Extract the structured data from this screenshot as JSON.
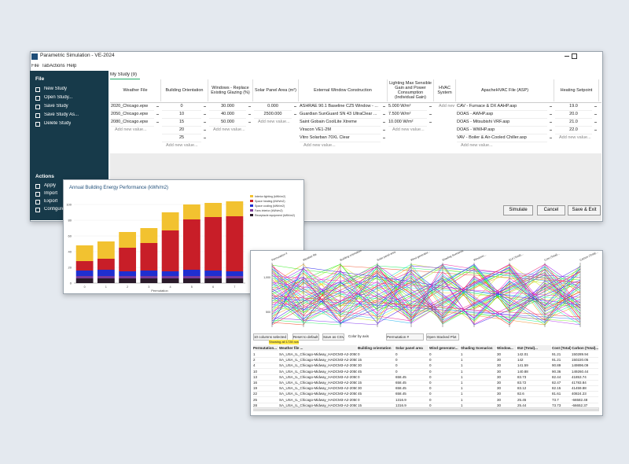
{
  "window": {
    "title": "Parametric Simulation - VE-2024",
    "menu": [
      "File",
      "Tab",
      "Actions",
      "Help"
    ]
  },
  "sidebar": {
    "file_heading": "File",
    "file_items": [
      "New Study",
      "Open Study...",
      "Save Study",
      "Save Study As...",
      "Delete Study"
    ],
    "actions_heading": "Actions",
    "action_items": [
      "Apply",
      "Import",
      "Export",
      "Configure"
    ]
  },
  "tab": "My Study (9)",
  "table": {
    "add_label": "Add new value...",
    "columns": [
      {
        "header": "Weather File",
        "values": [
          "2020_Chicago.epw",
          "2050_Chicago.epw",
          "2080_Chicago.epw"
        ]
      },
      {
        "header": "Building Orientation",
        "values": [
          "0",
          "10",
          "15",
          "20",
          "25"
        ]
      },
      {
        "header": "Windows - Replace Existing Glazing (%)",
        "values": [
          "30.000",
          "40.000",
          "50.000"
        ]
      },
      {
        "header": "Solar Panel Area (m²)",
        "values": [
          "0.000",
          "2500.000"
        ]
      },
      {
        "header": "External Window Construction",
        "values": [
          "ASHRAE 90.1 Baseline CZ5 Window - ...",
          "Guardian SunGuard SN 43 UltraClear ...",
          "Saint Gobain CoolLite Xtreme",
          "Viracon VE1-2M",
          "Vitro Solarban 70XL Clear"
        ]
      },
      {
        "header": "Lighting Max Sensible Gain and Power Consumption (Individual Gain)",
        "values": [
          "5.000 W/m²",
          "7.500 W/m²",
          "10.000 W/m²"
        ]
      },
      {
        "header": "HVAC System",
        "values": []
      },
      {
        "header": "ApacheHVAC File (ASP)",
        "values": [
          "CAV - Furnace & DX AAHP.asp",
          "DOAS - AWHP.asp",
          "DOAS - Mitsubishi VRF.asp",
          "DOAS - WWHP.asp",
          "VAV - Boiler & Air-Cooled Chiller.asp"
        ]
      },
      {
        "header": "Heating Setpoint",
        "values": [
          "19.0",
          "20.0",
          "21.0",
          "22.0"
        ]
      }
    ]
  },
  "buttons": [
    "Simulate",
    "Cancel",
    "Save & Exit"
  ],
  "energy_chart": {
    "type": "bar",
    "stacked": true,
    "title": "Annual Building Energy Performance (kWh/m2)",
    "x_label": "Permutation",
    "categories": [
      "0",
      "1",
      "2",
      "3",
      "4",
      "5",
      "6",
      "7"
    ],
    "series": [
      {
        "name": "Receptacle equipment (kWh/m2)",
        "color": "#2a1a2a",
        "values": [
          6,
          6,
          6,
          6,
          6,
          6,
          6,
          6
        ]
      },
      {
        "name": "Fans interior (kWh/m2)",
        "color": "#7a3a9a",
        "values": [
          3,
          3,
          3,
          3,
          3,
          3,
          3,
          3
        ]
      },
      {
        "name": "Space cooling (kWh/m2)",
        "color": "#1f2fd0",
        "values": [
          7,
          8,
          6,
          7,
          6,
          8,
          7,
          6
        ]
      },
      {
        "name": "Space heating (kWh/m2)",
        "color": "#c81e28",
        "values": [
          12,
          14,
          30,
          35,
          52,
          64,
          68,
          70
        ]
      },
      {
        "name": "Interior lighting (kWh/m2)",
        "color": "#f2c230",
        "values": [
          20,
          22,
          20,
          19,
          23,
          19,
          18,
          19
        ]
      }
    ],
    "ylim": [
      0,
      110
    ],
    "yticks": [
      0,
      20,
      40,
      60,
      80,
      100
    ]
  },
  "results": {
    "axes": [
      "Permutation #",
      "Weather file",
      "Building orientation",
      "Solar panel area",
      "Wind generator...",
      "Shading Scenarios",
      "Windows...",
      "EUI (Total)...",
      "Cost (Total)...",
      "Carbon (Total)..."
    ],
    "axis_ticks": [
      "1,000",
      "500"
    ],
    "controls": [
      "10 columns selected",
      "Reset to default",
      "Save as CSV",
      "Color by axis",
      "Permutation #",
      "Open Stacked Plot"
    ],
    "status": "Showing all 1728 rows",
    "headers": [
      "Permutation...",
      "Weather file ...",
      "Building orientation",
      "Solar panel area",
      "Wind generator...",
      "Shading Scenarios",
      "Window...",
      "EUI (Total)...",
      "Cost (Total)...",
      "Carbon (Total)..."
    ],
    "rows": [
      [
        "1",
        "SA_USA_IL_Chicago-Midway_HADCM3-A2-2050...",
        "0",
        "0",
        "0",
        "1",
        "30",
        "142.01",
        "91.21",
        "150289.94"
      ],
      [
        "2",
        "SA_USA_IL_Chicago-Midway_HADCM3-A2-2050...",
        "15",
        "0",
        "0",
        "1",
        "30",
        "142",
        "91.21",
        "150220.05"
      ],
      [
        "4",
        "SA_USA_IL_Chicago-Midway_HADCM3-A2-2050...",
        "30",
        "0",
        "0",
        "1",
        "30",
        "141.59",
        "90.89",
        "149896.09"
      ],
      [
        "10",
        "SA_USA_IL_Chicago-Midway_HADCM3-A2-2050...",
        "45",
        "0",
        "0",
        "1",
        "30",
        "140.88",
        "90.36",
        "149260.44"
      ],
      [
        "13",
        "SA_USA_IL_Chicago-Midway_HADCM3-A2-2050...",
        "0",
        "658.45",
        "0",
        "1",
        "30",
        "83.73",
        "82.44",
        "41853.74"
      ],
      [
        "16",
        "SA_USA_IL_Chicago-Midway_HADCM3-A2-2050...",
        "15",
        "658.45",
        "0",
        "1",
        "30",
        "83.72",
        "82.47",
        "41783.84"
      ],
      [
        "19",
        "SA_USA_IL_Chicago-Midway_HADCM3-A2-2050...",
        "30",
        "658.45",
        "0",
        "1",
        "30",
        "83.12",
        "82.15",
        "41459.88"
      ],
      [
        "22",
        "SA_USA_IL_Chicago-Midway_HADCM3-A2-2050...",
        "45",
        "658.45",
        "0",
        "1",
        "30",
        "82.6",
        "81.61",
        "40824.23"
      ],
      [
        "25",
        "SA_USA_IL_Chicago-Midway_HADCM3-A2-2050...",
        "0",
        "1316.9",
        "0",
        "1",
        "30",
        "25.45",
        "73.7",
        "-66582.48"
      ],
      [
        "28",
        "SA_USA_IL_Chicago-Midway_HADCM3-A2-2050...",
        "15",
        "1316.9",
        "0",
        "1",
        "30",
        "25.44",
        "73.73",
        "-66652.37"
      ]
    ]
  }
}
